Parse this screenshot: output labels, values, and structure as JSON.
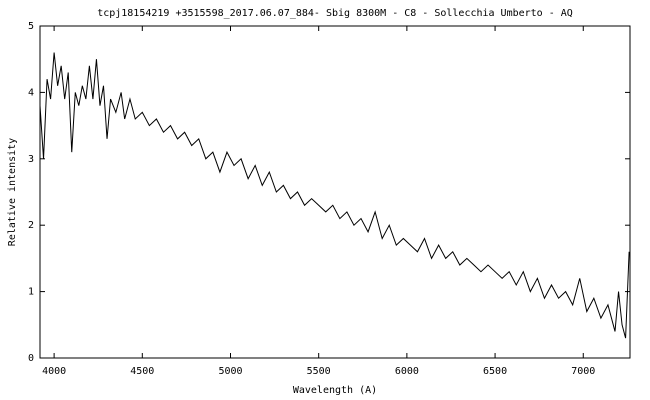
{
  "chart_data": {
    "type": "line",
    "title": "tcpj18154219 +3515598_2017.06.07_884- Sbig 8300M - C8 - Sollecchia Umberto - AQ",
    "x_label": "Wavelength (A)",
    "y_label": "Relative intensity",
    "xlim": [
      3920,
      7265
    ],
    "ylim": [
      0,
      5
    ],
    "xticks": [
      4000,
      4500,
      5000,
      5500,
      6000,
      6500,
      7000
    ],
    "yticks": [
      0,
      1,
      2,
      3,
      4,
      5
    ],
    "series": [
      {
        "color": "#000000",
        "x": [
          3920,
          3940,
          3960,
          3980,
          4000,
          4020,
          4040,
          4060,
          4080,
          4100,
          4120,
          4140,
          4160,
          4180,
          4200,
          4220,
          4240,
          4260,
          4280,
          4300,
          4320,
          4350,
          4380,
          4400,
          4430,
          4460,
          4500,
          4540,
          4580,
          4620,
          4660,
          4700,
          4740,
          4780,
          4820,
          4860,
          4900,
          4940,
          4980,
          5020,
          5060,
          5100,
          5140,
          5180,
          5220,
          5260,
          5300,
          5340,
          5380,
          5420,
          5460,
          5500,
          5540,
          5580,
          5620,
          5660,
          5700,
          5740,
          5780,
          5820,
          5860,
          5900,
          5940,
          5980,
          6020,
          6060,
          6100,
          6140,
          6180,
          6220,
          6260,
          6300,
          6340,
          6380,
          6420,
          6460,
          6500,
          6540,
          6580,
          6620,
          6660,
          6700,
          6740,
          6780,
          6820,
          6860,
          6900,
          6940,
          6980,
          7020,
          7060,
          7100,
          7140,
          7180,
          7200,
          7220,
          7240,
          7260
        ],
        "values": [
          3.8,
          3.0,
          4.2,
          3.9,
          4.6,
          4.1,
          4.4,
          3.9,
          4.3,
          3.1,
          4.0,
          3.8,
          4.1,
          3.9,
          4.4,
          3.9,
          4.5,
          3.8,
          4.1,
          3.3,
          3.9,
          3.7,
          4.0,
          3.6,
          3.9,
          3.6,
          3.7,
          3.5,
          3.6,
          3.4,
          3.5,
          3.3,
          3.4,
          3.2,
          3.3,
          3.0,
          3.1,
          2.8,
          3.1,
          2.9,
          3.0,
          2.7,
          2.9,
          2.6,
          2.8,
          2.5,
          2.6,
          2.4,
          2.5,
          2.3,
          2.4,
          2.3,
          2.2,
          2.3,
          2.1,
          2.2,
          2.0,
          2.1,
          1.9,
          2.2,
          1.8,
          2.0,
          1.7,
          1.8,
          1.7,
          1.6,
          1.8,
          1.5,
          1.7,
          1.5,
          1.6,
          1.4,
          1.5,
          1.4,
          1.3,
          1.4,
          1.3,
          1.2,
          1.3,
          1.1,
          1.3,
          1.0,
          1.2,
          0.9,
          1.1,
          0.9,
          1.0,
          0.8,
          1.2,
          0.7,
          0.9,
          0.6,
          0.8,
          0.4,
          1.0,
          0.5,
          0.3,
          1.6
        ]
      }
    ]
  }
}
